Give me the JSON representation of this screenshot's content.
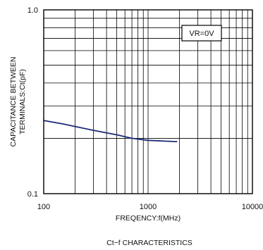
{
  "chart_data": {
    "type": "line",
    "title": "",
    "caption": "Ct−f CHARACTERISTICS",
    "xlabel": "FREQENCY:f(MHz)",
    "ylabel_lines": [
      "CAPACITANCE BETWEEN",
      "TERMINALS:Ct(pF)"
    ],
    "x_scale": "log",
    "y_scale": "log",
    "xlim": [
      100,
      10000
    ],
    "ylim": [
      0.1,
      1.0
    ],
    "x_tick_labels": [
      {
        "value": 100,
        "label": "100"
      },
      {
        "value": 1000,
        "label": "1000"
      },
      {
        "value": 10000,
        "label": "10000"
      }
    ],
    "y_tick_labels": [
      {
        "value": 0.1,
        "label": "0.1"
      },
      {
        "value": 1.0,
        "label": "1.0"
      }
    ],
    "grid": true,
    "annotation": {
      "text": "VR=0V",
      "placement": "top-right"
    },
    "series": [
      {
        "color": "#1c2a78",
        "x": [
          100,
          150,
          200,
          300,
          500,
          700,
          1000,
          1500,
          1900
        ],
        "y": [
          0.25,
          0.24,
          0.232,
          0.221,
          0.209,
          0.2,
          0.195,
          0.193,
          0.192
        ]
      }
    ]
  }
}
